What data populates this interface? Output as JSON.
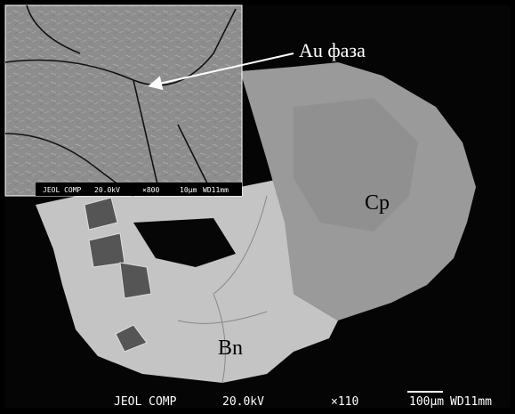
{
  "image": {
    "labels": {
      "phase": "Au фаза",
      "cp": "Cp",
      "bn": "Bn"
    },
    "main_info_bar": [
      "JEOL COMP",
      "20.0kV",
      "×110",
      "100µm",
      "WD11mm"
    ],
    "inset_info_bar": [
      "JEOL COMP",
      "20.0kV",
      "×800",
      "10µm",
      "WD11mm"
    ]
  }
}
